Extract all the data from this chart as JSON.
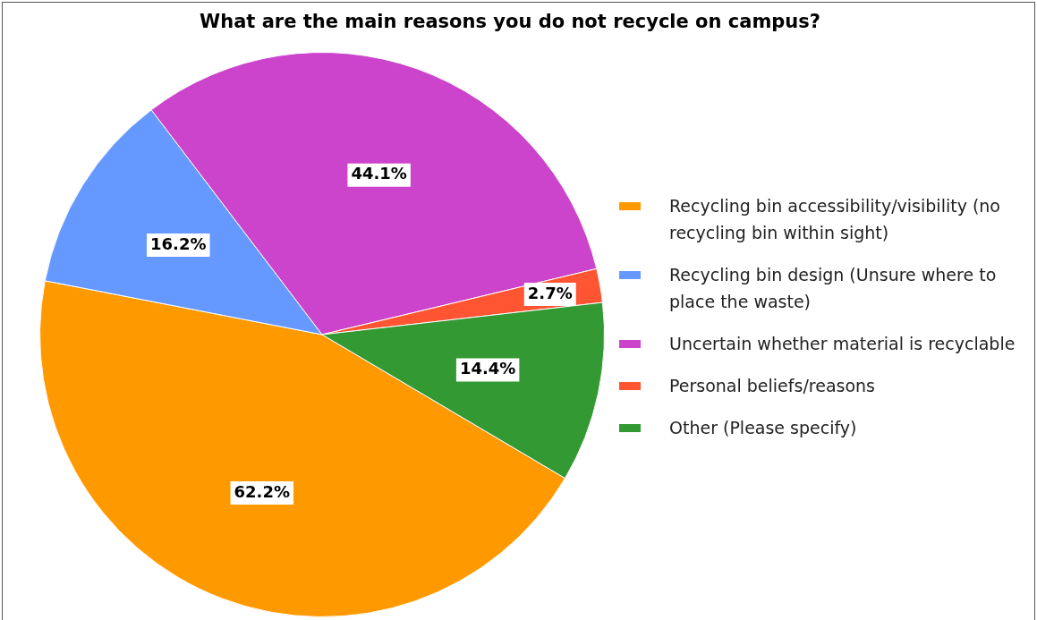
{
  "chart_data": {
    "type": "pie",
    "title": "What are the main reasons you do not recycle on campus?",
    "categories": [
      "Recycling bin accessibility/visibility (no recycling bin within sight)",
      "Recycling bin design (Unsure where to place the waste)",
      "Uncertain whether material is recyclable",
      "Personal beliefs/reasons",
      "Other (Please specify)"
    ],
    "values": [
      62.2,
      16.2,
      44.1,
      2.7,
      14.4
    ],
    "colors": [
      "#ff9900",
      "#6699ff",
      "#cc44cc",
      "#ff5533",
      "#339933"
    ],
    "value_labels": [
      "62.2%",
      "16.2%",
      "44.1%",
      "2.7%",
      "14.4%"
    ],
    "legend": "right"
  }
}
